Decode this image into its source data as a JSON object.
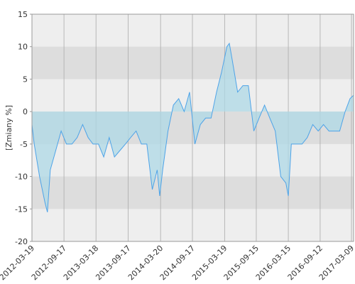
{
  "chart_data": {
    "type": "area",
    "y_label": "[Zmiany %]",
    "x": [
      "2012-03-19",
      "2012-04-01",
      "2012-05-01",
      "2012-06-01",
      "2012-06-15",
      "2012-07-01",
      "2012-08-01",
      "2012-09-01",
      "2012-10-01",
      "2012-11-01",
      "2012-12-01",
      "2013-01-01",
      "2013-02-01",
      "2013-03-01",
      "2013-04-01",
      "2013-05-01",
      "2013-06-01",
      "2013-07-01",
      "2013-08-01",
      "2013-09-01",
      "2013-10-01",
      "2013-11-01",
      "2013-12-01",
      "2014-01-01",
      "2014-02-01",
      "2014-03-01",
      "2014-03-15",
      "2014-04-01",
      "2014-05-01",
      "2014-06-01",
      "2014-07-01",
      "2014-08-01",
      "2014-09-01",
      "2014-10-01",
      "2014-11-01",
      "2014-12-01",
      "2015-01-01",
      "2015-02-01",
      "2015-03-01",
      "2015-04-01",
      "2015-04-15",
      "2015-05-01",
      "2015-06-01",
      "2015-07-01",
      "2015-08-01",
      "2015-09-01",
      "2015-10-01",
      "2015-11-01",
      "2015-12-01",
      "2016-01-01",
      "2016-02-01",
      "2016-03-01",
      "2016-03-15",
      "2016-04-01",
      "2016-05-01",
      "2016-06-01",
      "2016-07-01",
      "2016-08-01",
      "2016-09-01",
      "2016-10-01",
      "2016-11-01",
      "2016-12-01",
      "2017-01-01",
      "2017-02-01",
      "2017-03-01",
      "2017-03-20"
    ],
    "series": [
      {
        "color": "#4da3e8",
        "fill": "#add8e6",
        "values": [
          -2,
          -5,
          -10,
          -14,
          -15.5,
          -9,
          -6,
          -3,
          -5,
          -5,
          -4,
          -2,
          -4,
          -5,
          -5,
          -7,
          -4,
          -7,
          -6,
          -5,
          -4,
          -3,
          -5,
          -5,
          -12,
          -9,
          -13,
          -9,
          -3,
          1,
          2,
          0,
          3,
          -5,
          -2,
          -1,
          -1,
          3,
          6,
          10,
          10.5,
          8,
          3,
          4,
          4,
          -3,
          -1,
          1,
          -1,
          -3,
          -10,
          -11,
          -13,
          -5,
          -5,
          -5,
          -4,
          -2,
          -3,
          -2,
          -3,
          -3,
          -3,
          0,
          2,
          2.5
        ]
      }
    ],
    "xlim": [
      "2012-03-19",
      "2017-03-21"
    ],
    "xticks": [
      "2012-03-19",
      "2012-09-17",
      "2013-03-18",
      "2013-09-17",
      "2014-03-20",
      "2014-09-17",
      "2015-03-19",
      "2015-09-15",
      "2016-03-15",
      "2016-09-12",
      "2017-03-09"
    ],
    "ylim": [
      -20,
      15
    ],
    "yticks": [
      15,
      10,
      5,
      0,
      -5,
      -10,
      -15,
      -20
    ],
    "grid": true
  }
}
